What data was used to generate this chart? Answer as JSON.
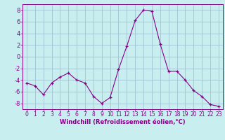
{
  "x": [
    0,
    1,
    2,
    3,
    4,
    5,
    6,
    7,
    8,
    9,
    10,
    11,
    12,
    13,
    14,
    15,
    16,
    17,
    18,
    19,
    20,
    21,
    22,
    23
  ],
  "y": [
    -4.5,
    -5.0,
    -6.5,
    -4.5,
    -3.5,
    -2.8,
    -4.0,
    -4.5,
    -6.8,
    -8.0,
    -7.0,
    -2.2,
    1.8,
    6.2,
    8.0,
    7.8,
    2.2,
    -2.5,
    -2.5,
    -4.0,
    -5.8,
    -6.8,
    -8.2,
    -8.5
  ],
  "line_color": "#880088",
  "marker": "+",
  "marker_color": "#880088",
  "bg_color": "#c8eef0",
  "grid_color": "#99bbcc",
  "xlabel": "Windchill (Refroidissement éolien,°C)",
  "xlabel_color": "#880088",
  "tick_color": "#880088",
  "spine_color": "#880088",
  "ylim": [
    -9,
    9
  ],
  "xlim": [
    -0.5,
    23.5
  ],
  "yticks": [
    -8,
    -6,
    -4,
    -2,
    0,
    2,
    4,
    6,
    8
  ],
  "xticks": [
    0,
    1,
    2,
    3,
    4,
    5,
    6,
    7,
    8,
    9,
    10,
    11,
    12,
    13,
    14,
    15,
    16,
    17,
    18,
    19,
    20,
    21,
    22,
    23
  ],
  "tick_fontsize": 5.5,
  "xlabel_fontsize": 6.0
}
